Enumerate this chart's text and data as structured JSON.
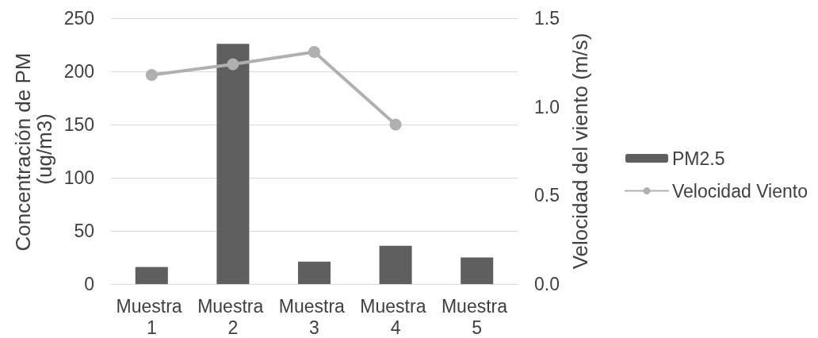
{
  "chart_data": {
    "type": "bar",
    "categories": [
      "Muestra 1",
      "Muestra 2",
      "Muestra 3",
      "Muestra 4",
      "Muestra 5"
    ],
    "series": [
      {
        "name": "PM2.5",
        "color": "#5f5f5f",
        "values": [
          16,
          226,
          21,
          36,
          25
        ]
      },
      {
        "name": "Velocidad Viento",
        "type": "line",
        "axis": "y2",
        "color": "#b0b0b0",
        "values": [
          1.18,
          1.24,
          1.31,
          0.9,
          null
        ]
      }
    ],
    "ylabel": "Concentración de PM (ug/m3)",
    "y2label": "Velocidad del viento (m/s)",
    "ylim": [
      0,
      250
    ],
    "yticks": [
      0,
      50,
      100,
      150,
      200,
      250
    ],
    "y2lim": [
      0,
      1.5
    ],
    "y2ticks": [
      {
        "value": 0,
        "label": "0.0"
      },
      {
        "value": 0.5,
        "label": "0.5"
      },
      {
        "value": 1,
        "label": "1.0"
      },
      {
        "value": 1.5,
        "label": "1.5"
      }
    ],
    "grid": "y",
    "legend": "right",
    "marker": "circle"
  }
}
